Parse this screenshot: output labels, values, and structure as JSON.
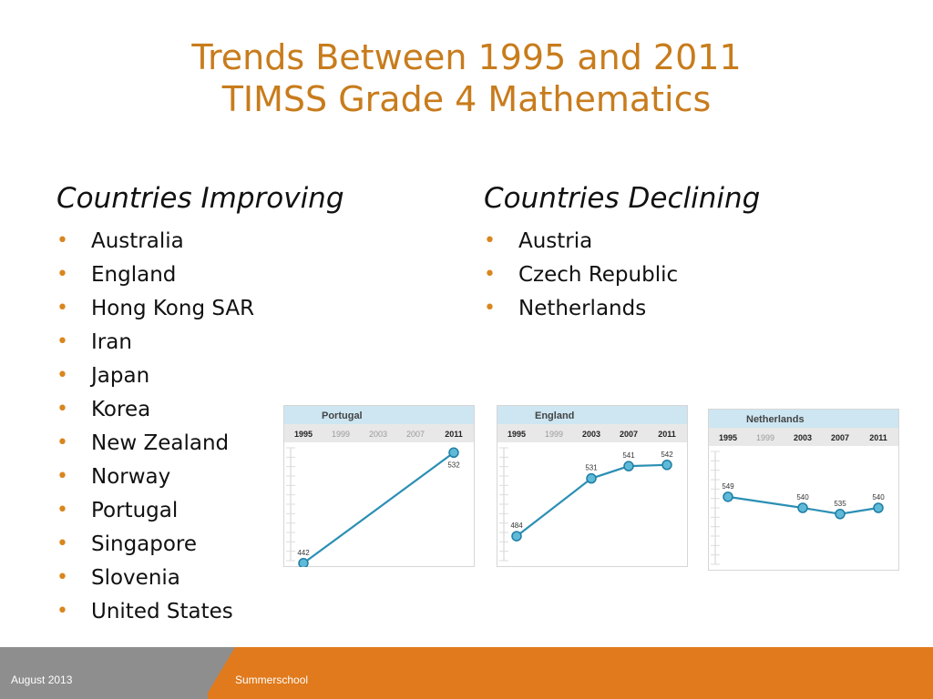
{
  "slide": {
    "title_line1": "Trends Between 1995 and 2011",
    "title_line2": "TIMSS Grade 4 Mathematics"
  },
  "improving": {
    "heading": "Countries Improving",
    "items": [
      "Australia",
      "England",
      "Hong Kong SAR",
      "Iran",
      "Japan",
      "Korea",
      "New Zealand",
      "Norway",
      "Portugal",
      "Singapore",
      "Slovenia",
      "United States"
    ]
  },
  "declining": {
    "heading": "Countries Declining",
    "items": [
      "Austria",
      "Czech Republic",
      "Netherlands"
    ]
  },
  "footer": {
    "date": "August 2013",
    "event": "Summerschool"
  },
  "colors": {
    "title": "#c87c1c",
    "bullet": "#d9861f",
    "line": "#2b8fb4",
    "header_band": "#cde6f2",
    "footer_gray": "#8e8e8e",
    "footer_orange": "#e07a1c"
  },
  "chart_data": [
    {
      "type": "line",
      "title": "Portugal",
      "years": [
        "1995",
        "1999",
        "2003",
        "2007",
        "2011"
      ],
      "active_years": [
        "1995",
        "2011"
      ],
      "x": [
        "1995",
        "2011"
      ],
      "values": [
        442,
        532
      ],
      "ylim": [
        450,
        530
      ],
      "yticks": [
        450,
        530
      ]
    },
    {
      "type": "line",
      "title": "England",
      "years": [
        "1995",
        "1999",
        "2003",
        "2007",
        "2011"
      ],
      "active_years": [
        "1995",
        "2003",
        "2007",
        "2011"
      ],
      "x": [
        "1995",
        "2003",
        "2007",
        "2011"
      ],
      "values": [
        484,
        531,
        541,
        542
      ],
      "ylim": [
        470,
        550
      ],
      "yticks": [
        470,
        550
      ]
    },
    {
      "type": "line",
      "title": "Netherlands",
      "years": [
        "1995",
        "1999",
        "2003",
        "2007",
        "2011"
      ],
      "active_years": [
        "1995",
        "2003",
        "2007",
        "2011"
      ],
      "x": [
        "1995",
        "2003",
        "2007",
        "2011"
      ],
      "values": [
        549,
        540,
        535,
        540
      ],
      "ylim": [
        500,
        580
      ],
      "yticks": [
        500,
        580
      ]
    }
  ]
}
